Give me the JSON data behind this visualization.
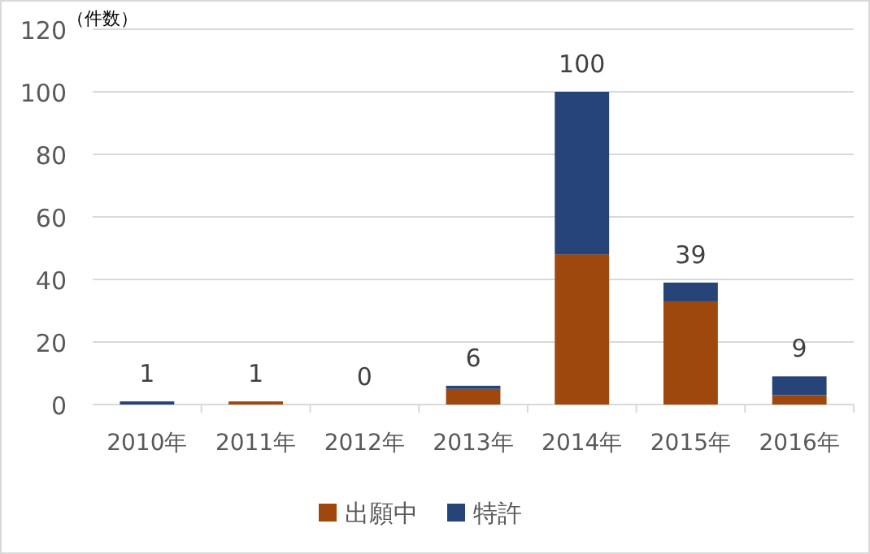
{
  "chart_data": {
    "type": "bar",
    "stacked": true,
    "ylabel": "（件数）",
    "categories": [
      "2010年",
      "2011年",
      "2012年",
      "2013年",
      "2014年",
      "2015年",
      "2016年"
    ],
    "series": [
      {
        "name": "出願中",
        "color": "#9e480e",
        "values": [
          0,
          1,
          0,
          5,
          48,
          33,
          3
        ]
      },
      {
        "name": "特許",
        "color": "#264478",
        "values": [
          1,
          0,
          0,
          1,
          52,
          6,
          6
        ]
      }
    ],
    "totals": [
      "1",
      "1",
      "0",
      "6",
      "100",
      "39",
      "9"
    ],
    "ylim": [
      0,
      120
    ],
    "yticks": [
      0,
      20,
      40,
      60,
      80,
      100,
      120
    ],
    "grid": "y",
    "legend": "bottom"
  }
}
